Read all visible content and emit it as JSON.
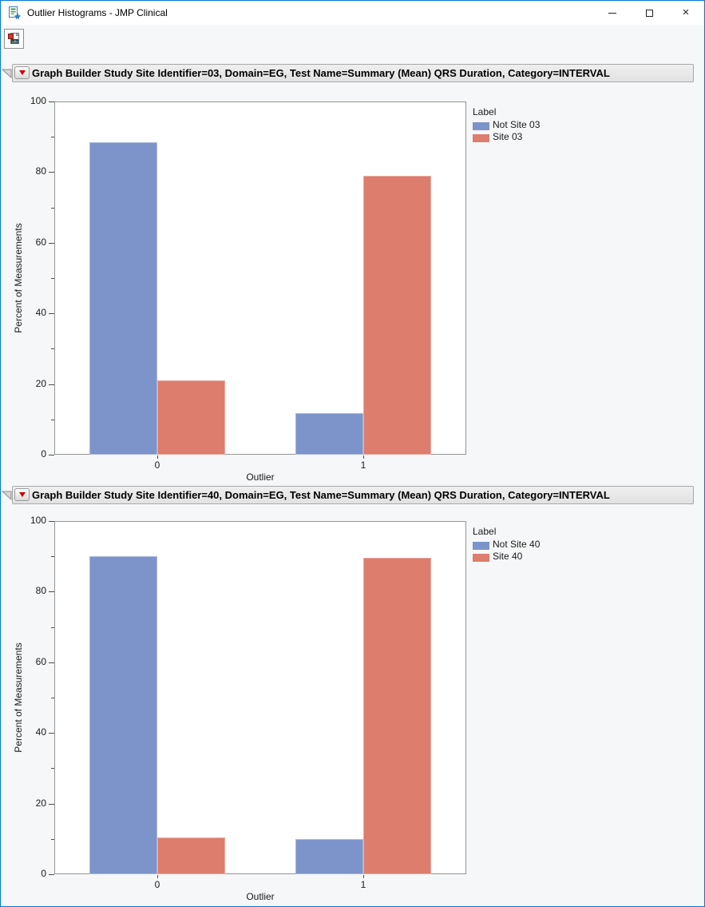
{
  "window": {
    "title": "Outlier Histograms - JMP Clinical",
    "controls": {
      "minimize": "minimize",
      "maximize": "maximize",
      "close": "close"
    }
  },
  "toolbar": {
    "button_icons": [
      "journal-report-icon"
    ]
  },
  "colors": {
    "accent_window_border": "#0078d7",
    "bar_blue": "#7d94cb",
    "bar_red": "#dd7d6e",
    "header_band_bg": "#e8e8e8",
    "plot_frame_border": "#949494",
    "report_bg": "#f6f7f8",
    "red_triangle": "#cc0000"
  },
  "chart_data": [
    {
      "type": "bar",
      "title": "Graph Builder Study Site Identifier=03, Domain=EG, Test Name=Summary (Mean) QRS Duration, Category=INTERVAL",
      "categories": [
        "0",
        "1"
      ],
      "series": [
        {
          "name": "Not Site 03",
          "color": "#7d94cb",
          "values": [
            88.5,
            11.7
          ]
        },
        {
          "name": "Site 03",
          "color": "#dd7d6e",
          "values": [
            21,
            79
          ]
        }
      ],
      "xlabel": "Outlier",
      "ylabel": "Percent of Measurements",
      "ylim": [
        0,
        100
      ],
      "y_major_step": 20,
      "y_minor_step": 10,
      "legend_title": "Label",
      "legend_position": "right",
      "grid": false
    },
    {
      "type": "bar",
      "title": "Graph Builder Study Site Identifier=40, Domain=EG, Test Name=Summary (Mean) QRS Duration, Category=INTERVAL",
      "categories": [
        "0",
        "1"
      ],
      "series": [
        {
          "name": "Not Site 40",
          "color": "#7d94cb",
          "values": [
            90,
            10
          ]
        },
        {
          "name": "Site 40",
          "color": "#dd7d6e",
          "values": [
            10.5,
            89.5
          ]
        }
      ],
      "xlabel": "Outlier",
      "ylabel": "Percent of Measurements",
      "ylim": [
        0,
        100
      ],
      "y_major_step": 20,
      "y_minor_step": 10,
      "legend_title": "Label",
      "legend_position": "right",
      "grid": false
    }
  ]
}
